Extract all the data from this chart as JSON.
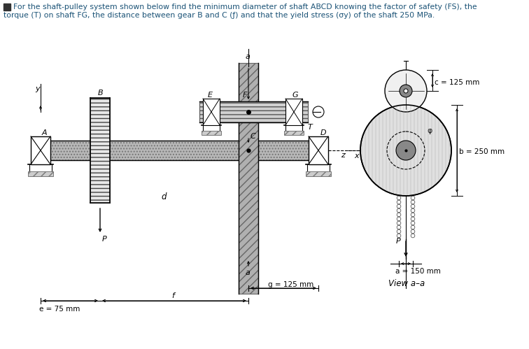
{
  "bg_color": "#ffffff",
  "text_color": "#000000",
  "title_line1": "For the shaft-pulley system shown below find the minimum diameter of shaft ABCD knowing the factor of safety (FS), the",
  "title_line2": "torque (T) on shaft FG, the distance between gear B and C (ƒ) and that the yield stress (σy) of the shaft 250 MPa.",
  "label_e": "e = 75 mm",
  "label_g": "g = 125 mm",
  "label_a_right": "a = 150 mm",
  "label_b": "b = 250 mm",
  "label_c": "c = 125 mm",
  "view_label": "View a–a",
  "fig_width": 7.56,
  "fig_height": 4.99,
  "dpi": 100
}
